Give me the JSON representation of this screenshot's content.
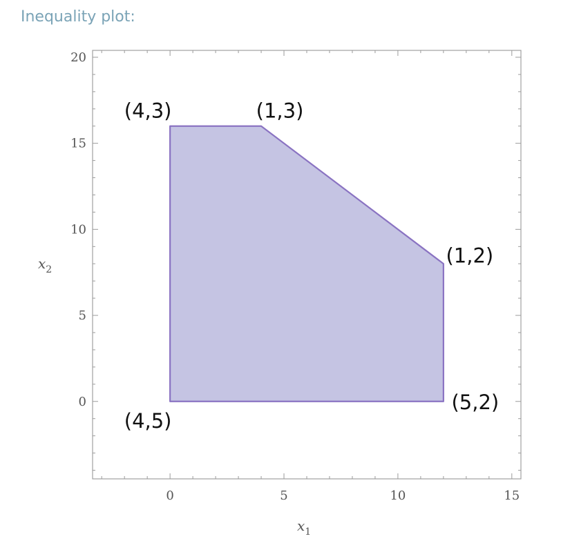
{
  "pod": {
    "title": "Inequality plot:"
  },
  "chart_data": {
    "type": "area",
    "xlabel": "x",
    "xlabel_sub": "1",
    "ylabel": "x",
    "ylabel_sub": "2",
    "xlim": [
      -3.4,
      15.4
    ],
    "ylim": [
      -4.5,
      20.4
    ],
    "xticks": [
      0,
      5,
      10,
      15
    ],
    "yticks": [
      0,
      5,
      10,
      15,
      20
    ],
    "region": [
      [
        0,
        0
      ],
      [
        12,
        0
      ],
      [
        12,
        8
      ],
      [
        4,
        16
      ],
      [
        0,
        16
      ]
    ],
    "region_fill": "#c5c4e3",
    "region_stroke": "#8a73c2",
    "vertex_labels": [
      {
        "text": "(4,3)",
        "x": 0,
        "y": 16,
        "anchor": "top-left"
      },
      {
        "text": "(1,3)",
        "x": 4,
        "y": 16,
        "anchor": "top"
      },
      {
        "text": "(1,2)",
        "x": 12,
        "y": 8,
        "anchor": "top-right"
      },
      {
        "text": "(5,2)",
        "x": 12,
        "y": 0,
        "anchor": "right"
      },
      {
        "text": "(4,5)",
        "x": 0,
        "y": 0,
        "anchor": "bottom-left"
      }
    ],
    "grid": false
  }
}
